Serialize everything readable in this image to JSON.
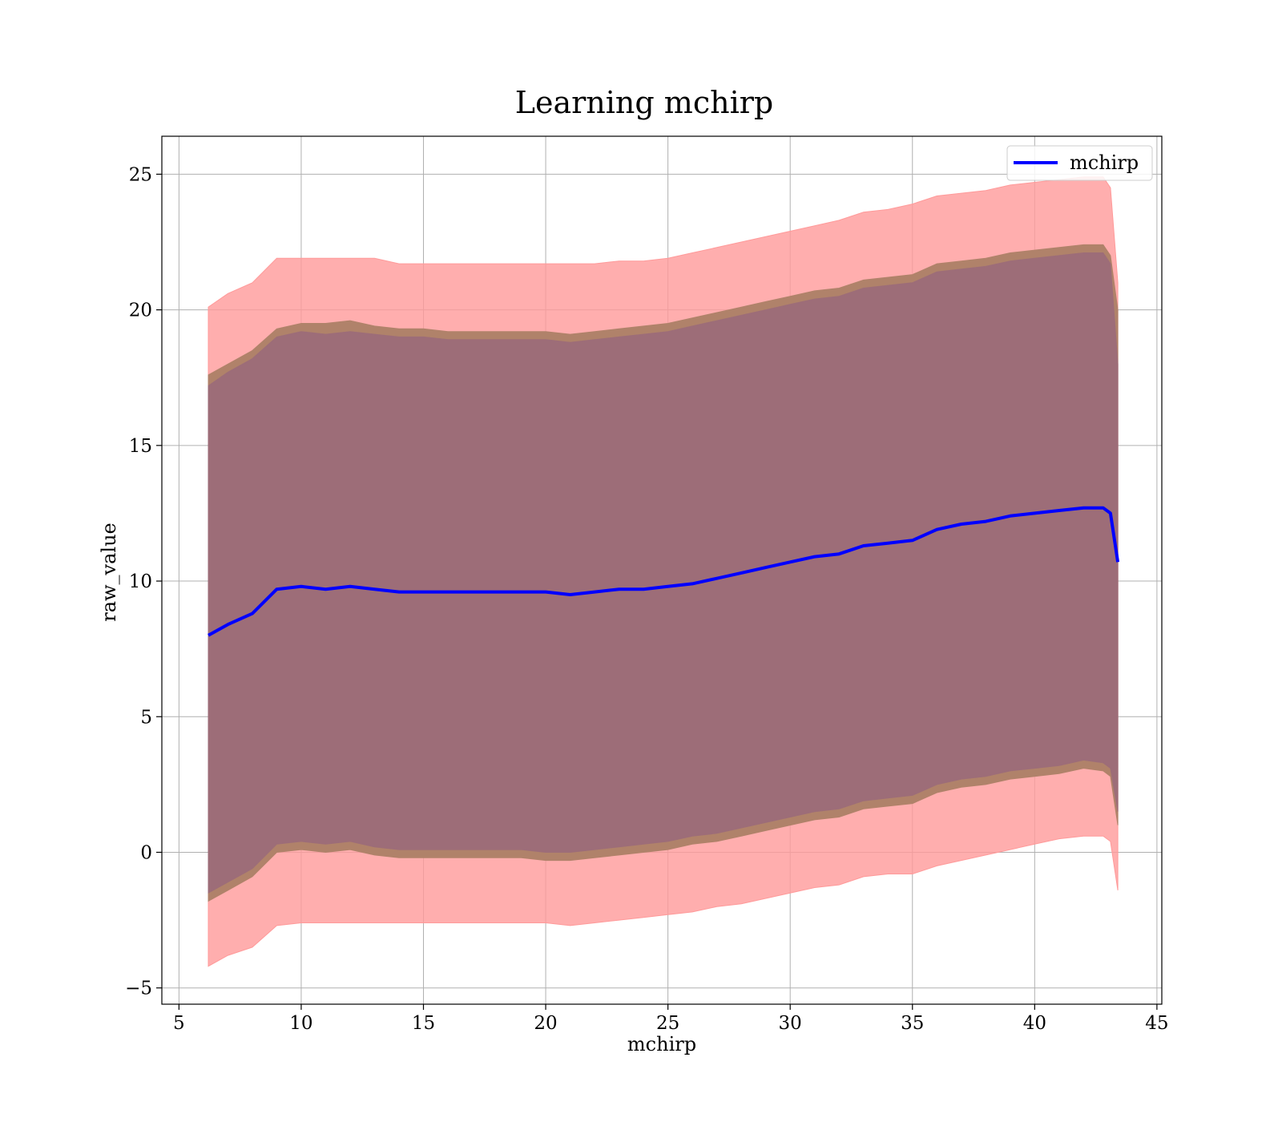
{
  "chart_data": {
    "type": "area",
    "title": "Learning mchirp",
    "xlabel": "mchirp",
    "ylabel": "raw_value",
    "xlim": [
      4.3,
      45.2
    ],
    "ylim": [
      -5.6,
      26.4
    ],
    "xticks": [
      5,
      10,
      15,
      20,
      25,
      30,
      35,
      40,
      45
    ],
    "xtick_labels": [
      "5",
      "10",
      "15",
      "20",
      "25",
      "30",
      "35",
      "40",
      "45"
    ],
    "yticks": [
      -5,
      0,
      5,
      10,
      15,
      20,
      25
    ],
    "ytick_labels": [
      "−5",
      "0",
      "5",
      "10",
      "15",
      "20",
      "25"
    ],
    "grid": true,
    "legend": {
      "position": "top-right",
      "entries": [
        "mchirp"
      ]
    },
    "colors": {
      "line": "#0000ff",
      "outer_band": "#ff9a9a",
      "middle_band": "#b0826a",
      "inner_band": "#9d6d78"
    },
    "x": [
      6.2,
      7,
      8,
      9,
      10,
      11,
      12,
      13,
      14,
      15,
      16,
      17,
      18,
      19,
      20,
      21,
      22,
      23,
      24,
      25,
      26,
      27,
      28,
      29,
      30,
      31,
      32,
      33,
      34,
      35,
      36,
      37,
      38,
      39,
      40,
      41,
      42,
      42.8,
      43.1,
      43.4
    ],
    "series": [
      {
        "name": "mchirp",
        "role": "line",
        "values": [
          8.0,
          8.4,
          8.8,
          9.7,
          9.8,
          9.7,
          9.8,
          9.7,
          9.6,
          9.6,
          9.6,
          9.6,
          9.6,
          9.6,
          9.6,
          9.5,
          9.6,
          9.7,
          9.7,
          9.8,
          9.9,
          10.1,
          10.3,
          10.5,
          10.7,
          10.9,
          11.0,
          11.3,
          11.4,
          11.5,
          11.9,
          12.1,
          12.2,
          12.4,
          12.5,
          12.6,
          12.7,
          12.7,
          12.5,
          10.7
        ]
      },
      {
        "role": "outer_band",
        "upper": [
          20.1,
          20.6,
          21.0,
          21.9,
          21.9,
          21.9,
          21.9,
          21.9,
          21.7,
          21.7,
          21.7,
          21.7,
          21.7,
          21.7,
          21.7,
          21.7,
          21.7,
          21.8,
          21.8,
          21.9,
          22.1,
          22.3,
          22.5,
          22.7,
          22.9,
          23.1,
          23.3,
          23.6,
          23.7,
          23.9,
          24.2,
          24.3,
          24.4,
          24.6,
          24.7,
          24.8,
          24.9,
          24.9,
          24.5,
          21.0
        ],
        "lower": [
          -4.2,
          -3.8,
          -3.5,
          -2.7,
          -2.6,
          -2.6,
          -2.6,
          -2.6,
          -2.6,
          -2.6,
          -2.6,
          -2.6,
          -2.6,
          -2.6,
          -2.6,
          -2.7,
          -2.6,
          -2.5,
          -2.4,
          -2.3,
          -2.2,
          -2.0,
          -1.9,
          -1.7,
          -1.5,
          -1.3,
          -1.2,
          -0.9,
          -0.8,
          -0.8,
          -0.5,
          -0.3,
          -0.1,
          0.1,
          0.3,
          0.5,
          0.6,
          0.6,
          0.4,
          -1.4
        ]
      },
      {
        "role": "middle_band",
        "upper": [
          17.6,
          18.0,
          18.5,
          19.3,
          19.5,
          19.5,
          19.6,
          19.4,
          19.3,
          19.3,
          19.2,
          19.2,
          19.2,
          19.2,
          19.2,
          19.1,
          19.2,
          19.3,
          19.4,
          19.5,
          19.7,
          19.9,
          20.1,
          20.3,
          20.5,
          20.7,
          20.8,
          21.1,
          21.2,
          21.3,
          21.7,
          21.8,
          21.9,
          22.1,
          22.2,
          22.3,
          22.4,
          22.4,
          22.0,
          20.0
        ],
        "lower": [
          -1.8,
          -1.4,
          -0.9,
          0.0,
          0.1,
          0.0,
          0.1,
          -0.1,
          -0.2,
          -0.2,
          -0.2,
          -0.2,
          -0.2,
          -0.2,
          -0.3,
          -0.3,
          -0.2,
          -0.1,
          0.0,
          0.1,
          0.3,
          0.4,
          0.6,
          0.8,
          1.0,
          1.2,
          1.3,
          1.6,
          1.7,
          1.8,
          2.2,
          2.4,
          2.5,
          2.7,
          2.8,
          2.9,
          3.1,
          3.0,
          2.8,
          1.0
        ]
      },
      {
        "role": "inner_band",
        "upper": [
          17.2,
          17.7,
          18.2,
          19.0,
          19.2,
          19.1,
          19.2,
          19.1,
          19.0,
          19.0,
          18.9,
          18.9,
          18.9,
          18.9,
          18.9,
          18.8,
          18.9,
          19.0,
          19.1,
          19.2,
          19.4,
          19.6,
          19.8,
          20.0,
          20.2,
          20.4,
          20.5,
          20.8,
          20.9,
          21.0,
          21.4,
          21.5,
          21.6,
          21.8,
          21.9,
          22.0,
          22.1,
          22.1,
          21.7,
          18.0
        ],
        "lower": [
          -1.5,
          -1.1,
          -0.6,
          0.3,
          0.4,
          0.3,
          0.4,
          0.2,
          0.1,
          0.1,
          0.1,
          0.1,
          0.1,
          0.1,
          0.0,
          0.0,
          0.1,
          0.2,
          0.3,
          0.4,
          0.6,
          0.7,
          0.9,
          1.1,
          1.3,
          1.5,
          1.6,
          1.9,
          2.0,
          2.1,
          2.5,
          2.7,
          2.8,
          3.0,
          3.1,
          3.2,
          3.4,
          3.3,
          3.1,
          1.5
        ]
      }
    ]
  }
}
